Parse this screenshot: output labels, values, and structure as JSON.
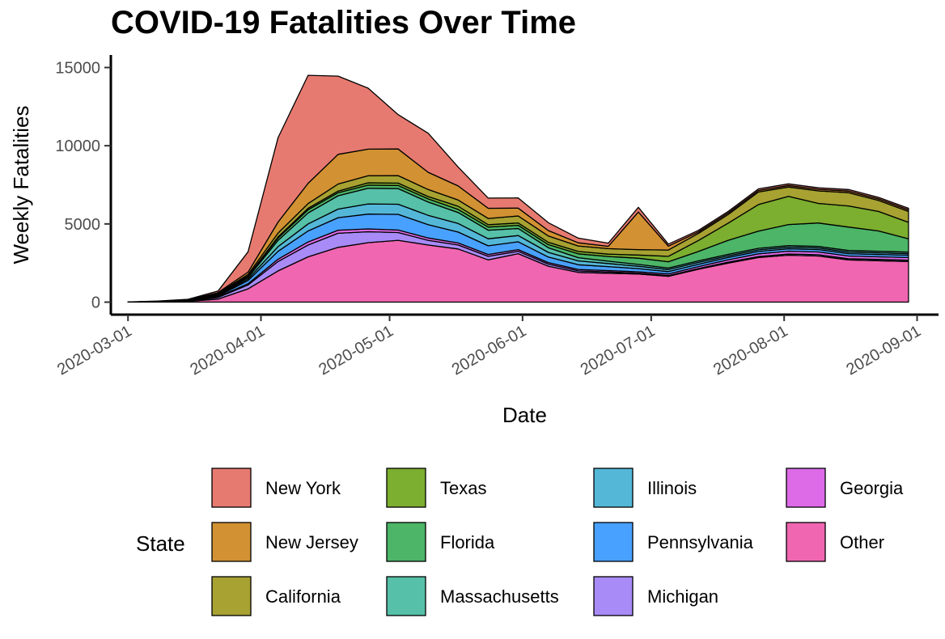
{
  "chart_data": {
    "type": "area",
    "stacked": true,
    "title": "COVID-19 Fatalities Over Time",
    "xlabel": "Date",
    "ylabel": "Weekly Fatalities",
    "xlim": [
      "2020-02-26",
      "2020-09-06"
    ],
    "ylim": [
      -800,
      15800
    ],
    "x_ticks": [
      "2020-03-01",
      "2020-04-01",
      "2020-05-01",
      "2020-06-01",
      "2020-07-01",
      "2020-08-01",
      "2020-09-01"
    ],
    "y_ticks": [
      0,
      5000,
      10000,
      15000
    ],
    "y_tick_labels": [
      "0",
      "5000",
      "10000",
      "15000"
    ],
    "grid": false,
    "legend": {
      "title": "State",
      "position": "bottom"
    },
    "x": [
      "2020-03-01",
      "2020-03-08",
      "2020-03-15",
      "2020-03-22",
      "2020-03-29",
      "2020-04-05",
      "2020-04-12",
      "2020-04-19",
      "2020-04-26",
      "2020-05-03",
      "2020-05-10",
      "2020-05-17",
      "2020-05-24",
      "2020-05-31",
      "2020-06-07",
      "2020-06-14",
      "2020-06-21",
      "2020-06-28",
      "2020-07-05",
      "2020-07-12",
      "2020-07-19",
      "2020-07-26",
      "2020-08-02",
      "2020-08-09",
      "2020-08-16",
      "2020-08-23",
      "2020-08-30"
    ],
    "series": [
      {
        "name": "Other",
        "color": "#F066B1",
        "values": [
          5,
          20,
          50,
          200,
          850,
          2000,
          2900,
          3500,
          3800,
          3950,
          3650,
          3400,
          2700,
          3100,
          2300,
          1900,
          1850,
          1800,
          1650,
          2100,
          2500,
          2850,
          3000,
          2950,
          2700,
          2650,
          2600
        ]
      },
      {
        "name": "Michigan",
        "color": "#A88BF7",
        "values": [
          0,
          5,
          15,
          100,
          250,
          600,
          750,
          900,
          700,
          500,
          300,
          250,
          230,
          150,
          130,
          100,
          80,
          60,
          50,
          50,
          60,
          70,
          80,
          80,
          80,
          80,
          80
        ]
      },
      {
        "name": "Georgia",
        "color": "#DD6BE8",
        "values": [
          0,
          3,
          5,
          40,
          80,
          150,
          200,
          200,
          180,
          160,
          150,
          130,
          120,
          110,
          100,
          90,
          90,
          80,
          100,
          120,
          150,
          170,
          180,
          180,
          170,
          170,
          170
        ]
      },
      {
        "name": "Pennsylvania",
        "color": "#49A1FF",
        "values": [
          0,
          2,
          5,
          50,
          200,
          500,
          700,
          800,
          950,
          1000,
          850,
          700,
          550,
          500,
          350,
          300,
          250,
          200,
          150,
          150,
          150,
          150,
          150,
          150,
          150,
          150,
          150
        ]
      },
      {
        "name": "Illinois",
        "color": "#54B7D8",
        "values": [
          0,
          2,
          5,
          40,
          100,
          300,
          450,
          550,
          650,
          650,
          600,
          550,
          450,
          400,
          300,
          250,
          200,
          150,
          130,
          120,
          100,
          100,
          100,
          100,
          100,
          100,
          100
        ]
      },
      {
        "name": "Massachusetts",
        "color": "#56C0A8",
        "values": [
          0,
          2,
          5,
          40,
          100,
          400,
          700,
          850,
          1000,
          1000,
          850,
          700,
          550,
          450,
          300,
          200,
          150,
          120,
          100,
          100,
          100,
          100,
          100,
          100,
          100,
          100,
          100
        ]
      },
      {
        "name": "Florida",
        "color": "#4CB567",
        "values": [
          0,
          5,
          10,
          40,
          60,
          150,
          200,
          200,
          200,
          200,
          200,
          200,
          200,
          200,
          200,
          250,
          300,
          400,
          400,
          600,
          900,
          1100,
          1350,
          1500,
          1500,
          1300,
          850
        ]
      },
      {
        "name": "Texas",
        "color": "#7CAE2F",
        "values": [
          0,
          2,
          5,
          20,
          30,
          70,
          100,
          100,
          150,
          150,
          150,
          200,
          150,
          150,
          150,
          150,
          150,
          200,
          350,
          700,
          1100,
          1700,
          1800,
          1250,
          1350,
          1250,
          1050
        ]
      },
      {
        "name": "California",
        "color": "#A7A231",
        "values": [
          0,
          5,
          15,
          30,
          100,
          250,
          300,
          450,
          450,
          480,
          450,
          400,
          400,
          450,
          400,
          350,
          350,
          350,
          400,
          450,
          550,
          800,
          600,
          800,
          850,
          700,
          700
        ]
      },
      {
        "name": "New Jersey",
        "color": "#D29132",
        "values": [
          0,
          5,
          20,
          50,
          150,
          700,
          1300,
          1900,
          1700,
          1700,
          1100,
          900,
          650,
          500,
          350,
          200,
          150,
          2400,
          250,
          100,
          100,
          100,
          100,
          100,
          100,
          100,
          100
        ]
      },
      {
        "name": "New York",
        "color": "#E77A70",
        "values": [
          5,
          20,
          50,
          100,
          1300,
          5400,
          6900,
          5000,
          3900,
          2200,
          2500,
          1200,
          650,
          650,
          500,
          300,
          200,
          300,
          130,
          100,
          100,
          100,
          100,
          100,
          100,
          100,
          100
        ]
      }
    ],
    "legend_order": [
      "New York",
      "New Jersey",
      "California",
      "Texas",
      "Florida",
      "Massachusetts",
      "Illinois",
      "Pennsylvania",
      "Michigan",
      "Georgia",
      "Other"
    ]
  }
}
